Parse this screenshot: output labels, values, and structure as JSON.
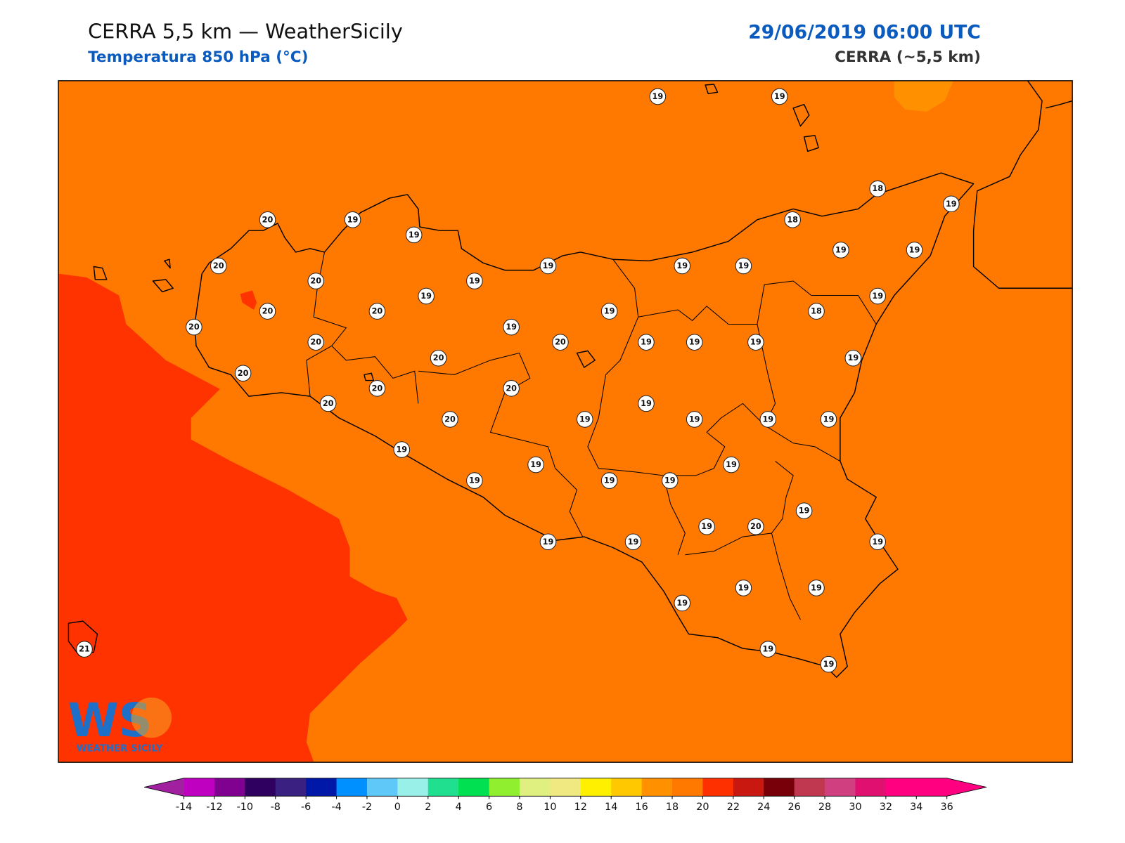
{
  "header": {
    "title": "CERRA 5,5 km — WeatherSicily",
    "subtitle": "Temperatura 850 hPa (°C)",
    "date": "29/06/2019 06:00 UTC",
    "model": "CERRA (~5,5 km)"
  },
  "stations": [
    19,
    19,
    18,
    19,
    20,
    19,
    19,
    18,
    20,
    19,
    19,
    19,
    19,
    19,
    20,
    19,
    19,
    19,
    20,
    20,
    19,
    18,
    20,
    19,
    20,
    20,
    19,
    19,
    19,
    20,
    19,
    20,
    20,
    20,
    20,
    19,
    20,
    19,
    19,
    19,
    19,
    19,
    19,
    19,
    19,
    19,
    19,
    19,
    19,
    20,
    19,
    19,
    19,
    19,
    19,
    19,
    19,
    19,
    21
  ],
  "colorbar": {
    "ticks": [
      -14,
      -12,
      -10,
      -8,
      -6,
      -4,
      -2,
      0,
      2,
      4,
      6,
      8,
      10,
      12,
      14,
      16,
      18,
      20,
      22,
      24,
      26,
      28,
      30,
      32,
      34,
      36
    ],
    "colors": [
      "#c000c0",
      "#800090",
      "#300060",
      "#3a2080",
      "#0018a8",
      "#0090ff",
      "#60c8f8",
      "#98f0e8",
      "#20e090",
      "#00e050",
      "#90f030",
      "#e0f080",
      "#f0e880",
      "#fff000",
      "#ffc800",
      "#ff9000",
      "#ff7800",
      "#ff3000",
      "#c81810",
      "#780008",
      "#c03850",
      "#d04080",
      "#e01070",
      "#ff0080",
      "#ff0080"
    ],
    "under": "#a020a0",
    "over": "#ff0080"
  },
  "logo": {
    "mark": "WS",
    "name": "WEATHER SICILY"
  }
}
